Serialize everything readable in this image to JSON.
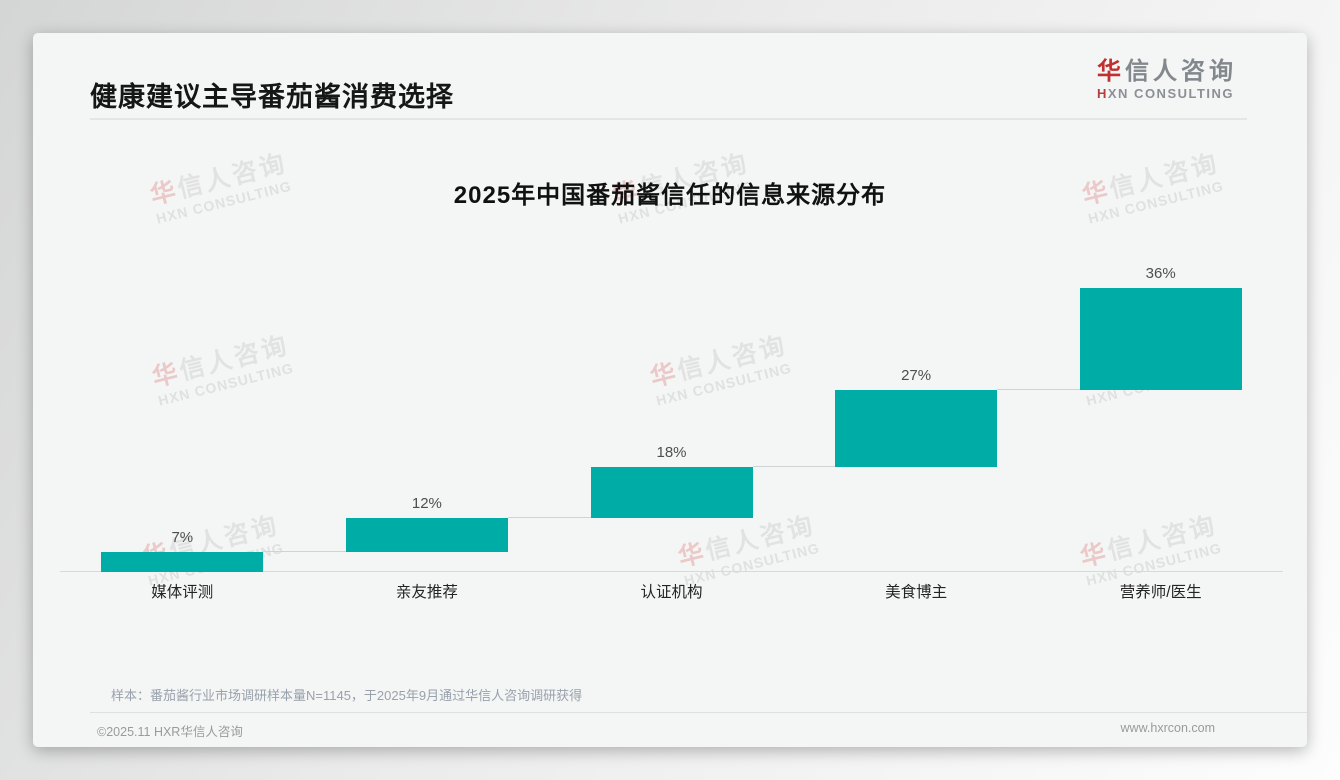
{
  "page": {
    "title": "健康建议主导番茄酱消费选择",
    "logo": {
      "cn_first": "华",
      "cn_rest": "信人咨询",
      "en_first": "H",
      "en_rest": "XN CONSULTING"
    },
    "watermark": {
      "line1_first": "华",
      "line1_rest": "信人咨询",
      "line2": "HXN CONSULTING"
    },
    "sample_note": "样本：番茄酱行业市场调研样本量N=1145，于2025年9月通过华信人咨询调研获得",
    "footer": {
      "copyright": "©2025.11 HXR华信人咨询",
      "website": "www.hxrcon.com"
    }
  },
  "chart_data": {
    "type": "bar",
    "subtype": "waterfall-cumulative",
    "title": "2025年中国番茄酱信任的信息来源分布",
    "categories": [
      "媒体评测",
      "亲友推荐",
      "认证机构",
      "美食博主",
      "营养师/医生"
    ],
    "values": [
      7,
      12,
      18,
      27,
      36
    ],
    "data_labels": [
      "7%",
      "12%",
      "18%",
      "27%",
      "36%"
    ],
    "ylabel": "",
    "xlabel": "",
    "ylim": [
      0,
      100
    ],
    "grid": false,
    "legend": "none",
    "bar_color": "#00ADA6",
    "connector_color": "#cfd3d3",
    "note": "each bar starts at the cumulative top of the previous bar; cumulative total = 100%"
  }
}
